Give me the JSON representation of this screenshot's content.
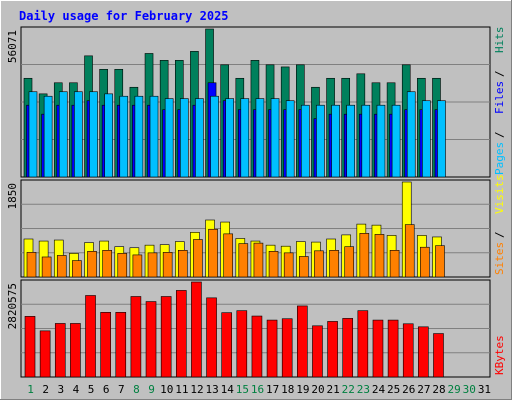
{
  "colors": {
    "background": "#c0c0c0",
    "plot_background": "#c0c0c0",
    "title": "#0000ff",
    "hits": "#00805c",
    "files": "#0000ff",
    "pages": "#00c0ff",
    "visits": "#ffff00",
    "sites": "#ff8000",
    "kbytes": "#ff0000",
    "weekday_label": "#008040",
    "weekend_label": "#008040",
    "separator_label": "#000000"
  },
  "chart_data": {
    "type": "bar",
    "title": "Daily usage for February 2025",
    "days": [
      "1",
      "2",
      "3",
      "4",
      "5",
      "6",
      "7",
      "8",
      "9",
      "10",
      "11",
      "12",
      "13",
      "14",
      "15",
      "16",
      "17",
      "18",
      "19",
      "20",
      "21",
      "22",
      "23",
      "24",
      "25",
      "26",
      "27",
      "28",
      "29",
      "30",
      "31"
    ],
    "day_colors": [
      "green",
      "black",
      "black",
      "black",
      "black",
      "black",
      "black",
      "green",
      "green",
      "black",
      "black",
      "black",
      "black",
      "black",
      "green",
      "green",
      "black",
      "black",
      "black",
      "black",
      "black",
      "green",
      "green",
      "black",
      "black",
      "black",
      "black",
      "black",
      "green",
      "green",
      "black"
    ],
    "panels": [
      {
        "name": "hits-files-pages",
        "ymax_label": "56071",
        "ymax": 56071,
        "legend": [
          "Pages",
          "Files",
          "Hits"
        ],
        "series": [
          {
            "name": "Hits",
            "values": [
              37400,
              31500,
              35700,
              35700,
              45900,
              40800,
              40800,
              34000,
              46800,
              44200,
              44200,
              47600,
              56071,
              42500,
              37400,
              44200,
              42500,
              41700,
              42500,
              34000,
              37400,
              37400,
              39100,
              35700,
              35700,
              42500,
              37400,
              37400
            ]
          },
          {
            "name": "Files",
            "values": [
              27200,
              23800,
              27200,
              27200,
              28900,
              27200,
              27200,
              27200,
              27200,
              25500,
              25500,
              27200,
              35700,
              28900,
              25500,
              25500,
              25500,
              25500,
              25500,
              22100,
              23800,
              23800,
              23800,
              23800,
              23800,
              25500,
              25500,
              25500
            ]
          },
          {
            "name": "Pages",
            "values": [
              32300,
              30600,
              32300,
              32300,
              32300,
              31500,
              30600,
              30600,
              30600,
              29700,
              29700,
              29700,
              30600,
              29700,
              29700,
              29700,
              29700,
              28900,
              27200,
              27200,
              27200,
              27200,
              27200,
              27200,
              27200,
              32300,
              28900,
              28900
            ]
          }
        ]
      },
      {
        "name": "visits-sites",
        "ymax_label": "1850",
        "ymax": 1850,
        "legend": [
          "Sites",
          "Visits"
        ],
        "series": [
          {
            "name": "Visits",
            "values": [
              740,
              700,
              720,
              460,
              670,
              700,
              590,
              570,
              620,
              630,
              690,
              870,
              1110,
              1070,
              750,
              700,
              620,
              600,
              690,
              680,
              740,
              820,
              1030,
              1010,
              810,
              1850,
              810,
              780
            ]
          },
          {
            "name": "Sites",
            "values": [
              480,
              390,
              420,
              320,
              500,
              520,
              460,
              430,
              470,
              480,
              520,
              730,
              930,
              840,
              650,
              660,
              500,
              470,
              400,
              510,
              520,
              590,
              850,
              830,
              520,
              1020,
              580,
              610
            ]
          }
        ]
      },
      {
        "name": "kbytes",
        "ymax_label": "2820575",
        "ymax": 2820575,
        "legend": [
          "KBytes"
        ],
        "series": [
          {
            "name": "KBytes",
            "values": [
              1800000,
              1370000,
              1590000,
              1590000,
              2420000,
              1920000,
              1920000,
              2390000,
              2240000,
              2390000,
              2570000,
              2820575,
              2350000,
              1910000,
              1970000,
              1810000,
              1690000,
              1730000,
              2110000,
              1520000,
              1650000,
              1740000,
              1970000,
              1690000,
              1690000,
              1580000,
              1490000,
              1290000
            ]
          }
        ]
      }
    ]
  }
}
